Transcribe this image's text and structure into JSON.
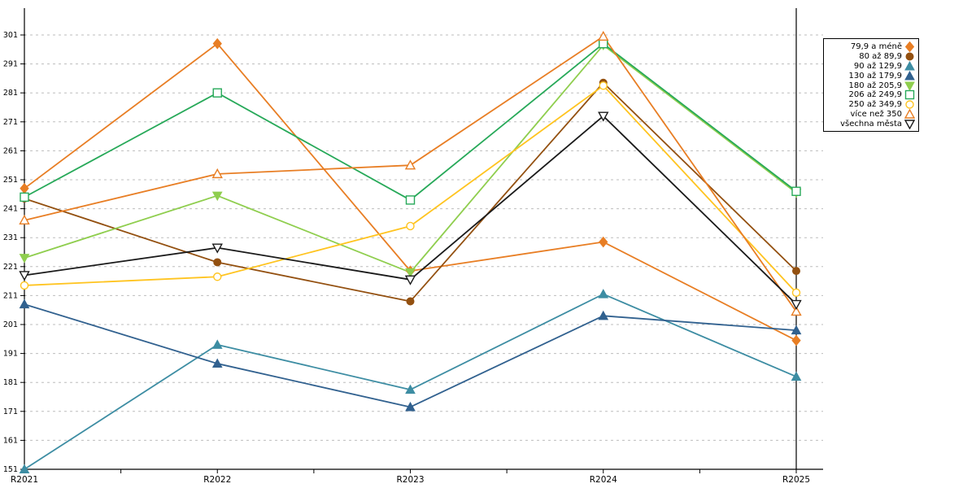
{
  "chart_data": {
    "type": "line",
    "x": [
      "R2021",
      "R2022",
      "R2023",
      "R2024",
      "R2025"
    ],
    "yticks": [
      151,
      161,
      171,
      181,
      191,
      201,
      211,
      221,
      231,
      241,
      251,
      261,
      271,
      281,
      291,
      301
    ],
    "ylim": [
      151,
      301
    ],
    "grid": "horizontal-dashed",
    "gridline_color": "#BDBDBD",
    "axis_color": "#000000",
    "legend_position": "top-right",
    "series": [
      {
        "name": "79,9 a méně",
        "color": "#E87E24",
        "marker": "diamond",
        "filled": true,
        "values": [
          248,
          298,
          219.5,
          229.5,
          195.5
        ]
      },
      {
        "name": "80 až 89,9",
        "color": "#935010",
        "marker": "circle",
        "filled": true,
        "values": [
          244.5,
          222.5,
          209,
          284.5,
          219.5
        ]
      },
      {
        "name": "90 až 129,9",
        "color": "#3D8DA3",
        "marker": "triangle-up",
        "filled": true,
        "values": [
          151,
          194,
          178.5,
          211.5,
          183
        ]
      },
      {
        "name": "130 až 179,9",
        "color": "#31618F",
        "marker": "triangle-up",
        "filled": true,
        "values": [
          208,
          187.5,
          172.5,
          204,
          199
        ]
      },
      {
        "name": "180 až 205,9",
        "color": "#8FCE4E",
        "marker": "triangle-down",
        "filled": true,
        "values": [
          224,
          245.5,
          219,
          297.5,
          246.5
        ]
      },
      {
        "name": "206 až 249,9",
        "color": "#27A959",
        "marker": "square",
        "filled": false,
        "values": [
          245,
          281,
          244,
          298,
          247
        ]
      },
      {
        "name": "250 až 349,9",
        "color": "#FFC420",
        "marker": "circle",
        "filled": false,
        "values": [
          214.5,
          217.5,
          235,
          283.5,
          212
        ]
      },
      {
        "name": "více než 350",
        "color": "#E87E24",
        "marker": "triangle-up",
        "filled": false,
        "values": [
          237,
          253,
          256,
          300.5,
          205.5
        ]
      },
      {
        "name": "všechna města",
        "color": "#1A1A1A",
        "marker": "triangle-down",
        "filled": false,
        "values": [
          218,
          227.5,
          216.5,
          273,
          208
        ]
      }
    ]
  }
}
